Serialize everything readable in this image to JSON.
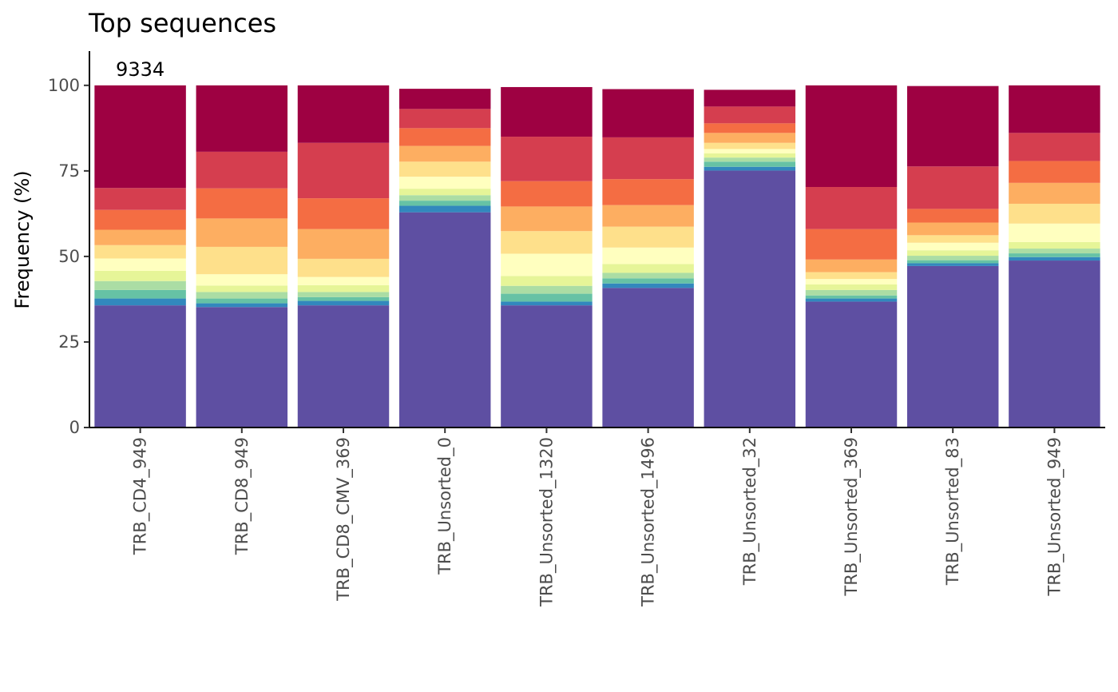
{
  "chart_data": {
    "type": "bar",
    "stacked": true,
    "title": "Top sequences",
    "xlabel": "",
    "ylabel": "Frequency (%)",
    "ylim": [
      0,
      110
    ],
    "yticks": [
      "0",
      "25",
      "50",
      "75",
      "100"
    ],
    "legend": "none",
    "grid": false,
    "annotation": {
      "text": "9334",
      "category": "TRB_CD4_949",
      "y": 100
    },
    "categories": [
      "TRB_CD4_949",
      "TRB_CD8_949",
      "TRB_CD8_CMV_369",
      "TRB_Unsorted_0",
      "TRB_Unsorted_1320",
      "TRB_Unsorted_1496",
      "TRB_Unsorted_32",
      "TRB_Unsorted_369",
      "TRB_Unsorted_83",
      "TRB_Unsorted_949"
    ],
    "colors": [
      "#5e4fa2",
      "#3288bd",
      "#66c2a5",
      "#abdda4",
      "#e6f598",
      "#ffffbf",
      "#fee08b",
      "#fdae61",
      "#f46d43",
      "#d53e4f",
      "#9e0142"
    ],
    "series": [
      {
        "values": [
          35.7,
          35.2,
          35.7,
          62.9,
          35.7,
          40.8,
          75.1,
          36.8,
          47.2,
          48.8
        ]
      },
      {
        "values": [
          2.0,
          1.1,
          1.3,
          1.9,
          1.1,
          1.3,
          1.1,
          0.9,
          0.8,
          1.0
        ]
      },
      {
        "values": [
          2.5,
          1.4,
          1.1,
          1.5,
          2.3,
          1.5,
          1.5,
          0.9,
          0.9,
          1.1
        ]
      },
      {
        "values": [
          2.6,
          1.9,
          1.5,
          1.6,
          2.3,
          1.6,
          1.2,
          1.6,
          1.3,
          1.4
        ]
      },
      {
        "values": [
          3.0,
          1.9,
          2.0,
          1.9,
          2.9,
          2.6,
          1.2,
          1.6,
          1.6,
          1.9
        ]
      },
      {
        "values": [
          3.6,
          3.3,
          2.4,
          3.5,
          6.5,
          4.8,
          1.3,
          1.6,
          2.2,
          5.4
        ]
      },
      {
        "values": [
          3.9,
          8.0,
          5.3,
          4.4,
          6.6,
          6.1,
          1.8,
          2.0,
          2.2,
          5.8
        ]
      },
      {
        "values": [
          4.5,
          8.3,
          8.7,
          4.6,
          7.2,
          6.3,
          2.9,
          3.7,
          3.7,
          6.1
        ]
      },
      {
        "values": [
          5.8,
          8.8,
          9.0,
          5.2,
          7.4,
          7.6,
          2.8,
          8.9,
          4.0,
          6.4
        ]
      },
      {
        "values": [
          6.4,
          10.7,
          16.2,
          5.6,
          13.0,
          12.2,
          4.9,
          12.3,
          12.4,
          8.2
        ]
      },
      {
        "values": [
          30.0,
          19.4,
          16.8,
          5.9,
          14.5,
          14.1,
          4.9,
          29.7,
          23.5,
          13.9
        ]
      }
    ]
  }
}
